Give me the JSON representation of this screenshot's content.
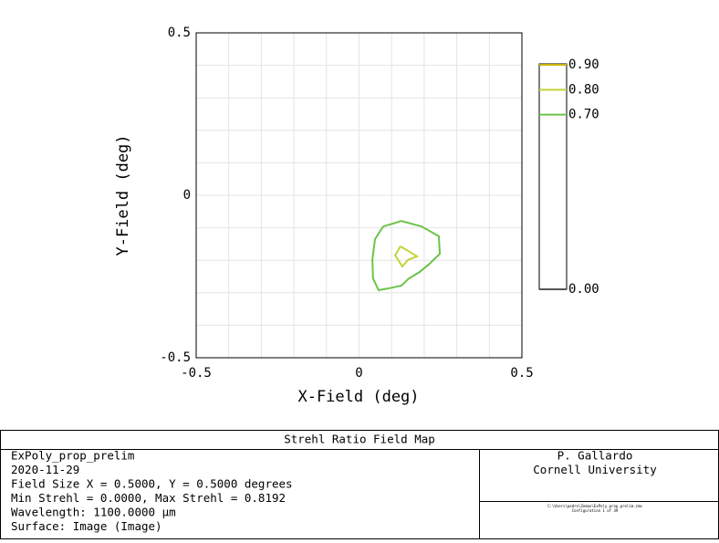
{
  "chart_data": {
    "type": "contour",
    "xlabel": "X-Field (deg)",
    "ylabel": "Y-Field (deg)",
    "xlim": [
      -0.5,
      0.5
    ],
    "ylim": [
      -0.5,
      0.5
    ],
    "xticks": [
      -0.5,
      0,
      0.5
    ],
    "yticks": [
      -0.5,
      0,
      0.5
    ],
    "grid": true,
    "xgrid": [
      -0.4,
      -0.3,
      -0.2,
      -0.1,
      0.1,
      0.2,
      0.3,
      0.4
    ],
    "ygrid": [
      -0.4,
      -0.3,
      -0.2,
      -0.1,
      0.1,
      0.2,
      0.3,
      0.4
    ],
    "legend_lim": [
      0,
      0.9
    ],
    "levels": [
      {
        "value": 0.9,
        "label": "0.90",
        "color": "#c8b400"
      },
      {
        "value": 0.8,
        "label": "0.80",
        "color": "#c3d43a"
      },
      {
        "value": 0.7,
        "label": "0.70",
        "color": "#6cc44a"
      },
      {
        "value": 0,
        "label": "0.00",
        "color": "#555555"
      }
    ],
    "contours": [
      {
        "name": "0.70",
        "color": "#6cc44a",
        "x": [
          0.074,
          0.13,
          0.192,
          0.245,
          0.248,
          0.214,
          0.186,
          0.153,
          0.13,
          0.088,
          0.06,
          0.043,
          0.041,
          0.049,
          0.074
        ],
        "y": [
          -0.096,
          -0.079,
          -0.096,
          -0.126,
          -0.18,
          -0.213,
          -0.236,
          -0.256,
          -0.278,
          -0.287,
          -0.292,
          -0.256,
          -0.199,
          -0.135,
          -0.096
        ]
      },
      {
        "name": "0.80",
        "color": "#c3d43a",
        "x": [
          0.127,
          0.178,
          0.15,
          0.133,
          0.111,
          0.127
        ],
        "y": [
          -0.157,
          -0.188,
          -0.199,
          -0.219,
          -0.185,
          -0.157
        ]
      }
    ]
  },
  "footer": {
    "title": "Strehl Ratio Field Map",
    "left": [
      "ExPoly_prop_prelim",
      "2020-11-29",
      "Field Size X = 0.5000, Y = 0.5000 degrees",
      "Min Strehl = 0.0000, Max Strehl = 0.8192",
      "Wavelength: 1100.0000 µm",
      "Surface: Image (Image)"
    ],
    "right": [
      "P. Gallardo",
      "Cornell University"
    ],
    "note": [
      "C:\\Users\\pedro\\Zemax\\ExPoly_prop_prelim.zmx",
      "Configuration 1 of 39"
    ]
  }
}
